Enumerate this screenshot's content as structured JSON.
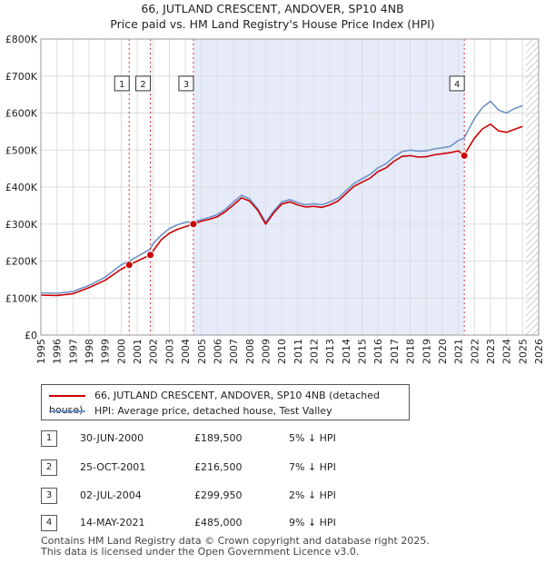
{
  "header": {
    "title_line1": "66, JUTLAND CRESCENT, ANDOVER, SP10 4NB",
    "title_line2": "Price paid vs. HM Land Registry's House Price Index (HPI)"
  },
  "legend": {
    "red_label": "66, JUTLAND CRESCENT, ANDOVER, SP10 4NB (detached house)",
    "blue_label": "HPI: Average price, detached house, Test Valley"
  },
  "colors": {
    "red": "#cc0000",
    "blue": "#6f93c8",
    "shade": "#e6ebfa",
    "hatch": "#b0b0b0"
  },
  "transactions": [
    {
      "num": "1",
      "date": "30-JUN-2000",
      "price": "£189,500",
      "hpi": "5% ↓ HPI"
    },
    {
      "num": "2",
      "date": "25-OCT-2001",
      "price": "£216,500",
      "hpi": "7% ↓ HPI"
    },
    {
      "num": "3",
      "date": "02-JUL-2004",
      "price": "£299,950",
      "hpi": "2% ↓ HPI"
    },
    {
      "num": "4",
      "date": "14-MAY-2021",
      "price": "£485,000",
      "hpi": "9% ↓ HPI"
    }
  ],
  "footer": {
    "line1": "Contains HM Land Registry data © Crown copyright and database right 2025.",
    "line2": "This data is licensed under the Open Government Licence v3.0."
  },
  "chart_data": {
    "type": "line",
    "title": "Price paid vs. HM Land Registry's House Price Index (HPI)",
    "xlim": [
      1995,
      2026
    ],
    "ylim": [
      0,
      800000
    ],
    "x_ticks": [
      1995,
      1996,
      1997,
      1998,
      1999,
      2000,
      2001,
      2002,
      2003,
      2004,
      2005,
      2006,
      2007,
      2008,
      2009,
      2010,
      2011,
      2012,
      2013,
      2014,
      2015,
      2016,
      2017,
      2018,
      2019,
      2020,
      2021,
      2022,
      2023,
      2024,
      2025,
      2026
    ],
    "x_tick_labels": [
      "1995",
      "1996",
      "1997",
      "1998",
      "1999",
      "2000",
      "2001",
      "2002",
      "2003",
      "2004",
      "2005",
      "2006",
      "2007",
      "2008",
      "2009",
      "2010",
      "2011",
      "2012",
      "2013",
      "2014",
      "2015",
      "2016",
      "2017",
      "2018",
      "2019",
      "2020",
      "2021",
      "2022",
      "2023",
      "2024",
      "2025",
      "2026"
    ],
    "y_ticks": [
      0,
      100000,
      200000,
      300000,
      400000,
      500000,
      600000,
      700000,
      800000
    ],
    "y_tick_labels": [
      "£0",
      "£100K",
      "£200K",
      "£300K",
      "£400K",
      "£500K",
      "£600K",
      "£700K",
      "£800K"
    ],
    "shaded_period": [
      2004.5,
      2021.37
    ],
    "hatched_from": 2025.2,
    "series": [
      {
        "name": "66, JUTLAND CRESCENT, ANDOVER, SP10 4NB (detached house)",
        "color": "#cc0000",
        "points": [
          [
            1995,
            108000
          ],
          [
            1996,
            107000
          ],
          [
            1997,
            112000
          ],
          [
            1998,
            128000
          ],
          [
            1999,
            148000
          ],
          [
            2000,
            178000
          ],
          [
            2000.5,
            189500
          ],
          [
            2001,
            200000
          ],
          [
            2001.8,
            216500
          ],
          [
            2002,
            228000
          ],
          [
            2002.5,
            258000
          ],
          [
            2003,
            275000
          ],
          [
            2003.5,
            286000
          ],
          [
            2004,
            293000
          ],
          [
            2004.5,
            299950
          ],
          [
            2005,
            308000
          ],
          [
            2005.5,
            313000
          ],
          [
            2006,
            320000
          ],
          [
            2006.5,
            334000
          ],
          [
            2007,
            352000
          ],
          [
            2007.5,
            371000
          ],
          [
            2008,
            362000
          ],
          [
            2008.5,
            338000
          ],
          [
            2009,
            300000
          ],
          [
            2009.5,
            330000
          ],
          [
            2010,
            354000
          ],
          [
            2010.5,
            360000
          ],
          [
            2011,
            352000
          ],
          [
            2011.5,
            346000
          ],
          [
            2012,
            348000
          ],
          [
            2012.5,
            345000
          ],
          [
            2013,
            352000
          ],
          [
            2013.5,
            362000
          ],
          [
            2014,
            382000
          ],
          [
            2014.5,
            402000
          ],
          [
            2015,
            413000
          ],
          [
            2015.5,
            424000
          ],
          [
            2016,
            442000
          ],
          [
            2016.5,
            452000
          ],
          [
            2017,
            470000
          ],
          [
            2017.5,
            483000
          ],
          [
            2018,
            485000
          ],
          [
            2018.5,
            481000
          ],
          [
            2019,
            482000
          ],
          [
            2019.5,
            487000
          ],
          [
            2020,
            490000
          ],
          [
            2020.5,
            493000
          ],
          [
            2021,
            498000
          ],
          [
            2021.37,
            485000
          ],
          [
            2021.5,
            497000
          ],
          [
            2022,
            532000
          ],
          [
            2022.5,
            557000
          ],
          [
            2023,
            570000
          ],
          [
            2023.5,
            552000
          ],
          [
            2024,
            548000
          ],
          [
            2024.5,
            556000
          ],
          [
            2025,
            564000
          ]
        ]
      },
      {
        "name": "HPI: Average price, detached house, Test Valley",
        "color": "#6f93c8",
        "points": [
          [
            1995,
            114000
          ],
          [
            1996,
            113000
          ],
          [
            1997,
            118000
          ],
          [
            1998,
            134000
          ],
          [
            1999,
            156000
          ],
          [
            2000,
            190000
          ],
          [
            2000.5,
            200000
          ],
          [
            2001,
            212000
          ],
          [
            2001.8,
            232000
          ],
          [
            2002,
            248000
          ],
          [
            2002.5,
            270000
          ],
          [
            2003,
            288000
          ],
          [
            2003.5,
            298000
          ],
          [
            2004,
            305000
          ],
          [
            2004.5,
            306000
          ],
          [
            2005,
            312000
          ],
          [
            2005.5,
            318000
          ],
          [
            2006,
            326000
          ],
          [
            2006.5,
            340000
          ],
          [
            2007,
            360000
          ],
          [
            2007.5,
            378000
          ],
          [
            2008,
            368000
          ],
          [
            2008.5,
            342000
          ],
          [
            2009,
            305000
          ],
          [
            2009.5,
            335000
          ],
          [
            2010,
            360000
          ],
          [
            2010.5,
            366000
          ],
          [
            2011,
            358000
          ],
          [
            2011.5,
            352000
          ],
          [
            2012,
            355000
          ],
          [
            2012.5,
            352000
          ],
          [
            2013,
            360000
          ],
          [
            2013.5,
            370000
          ],
          [
            2014,
            390000
          ],
          [
            2014.5,
            410000
          ],
          [
            2015,
            422000
          ],
          [
            2015.5,
            434000
          ],
          [
            2016,
            452000
          ],
          [
            2016.5,
            463000
          ],
          [
            2017,
            482000
          ],
          [
            2017.5,
            496000
          ],
          [
            2018,
            500000
          ],
          [
            2018.5,
            497000
          ],
          [
            2019,
            498000
          ],
          [
            2019.5,
            503000
          ],
          [
            2020,
            506000
          ],
          [
            2020.5,
            510000
          ],
          [
            2021,
            526000
          ],
          [
            2021.37,
            533000
          ],
          [
            2021.5,
            545000
          ],
          [
            2022,
            585000
          ],
          [
            2022.5,
            615000
          ],
          [
            2023,
            632000
          ],
          [
            2023.5,
            608000
          ],
          [
            2024,
            600000
          ],
          [
            2024.5,
            612000
          ],
          [
            2025,
            620000
          ]
        ]
      }
    ],
    "markers": [
      {
        "label": "1",
        "x": 2000.5,
        "y": 189500
      },
      {
        "label": "2",
        "x": 2001.82,
        "y": 216500
      },
      {
        "label": "3",
        "x": 2004.5,
        "y": 299950
      },
      {
        "label": "4",
        "x": 2021.37,
        "y": 485000
      }
    ],
    "marker_label_y": 680000
  }
}
